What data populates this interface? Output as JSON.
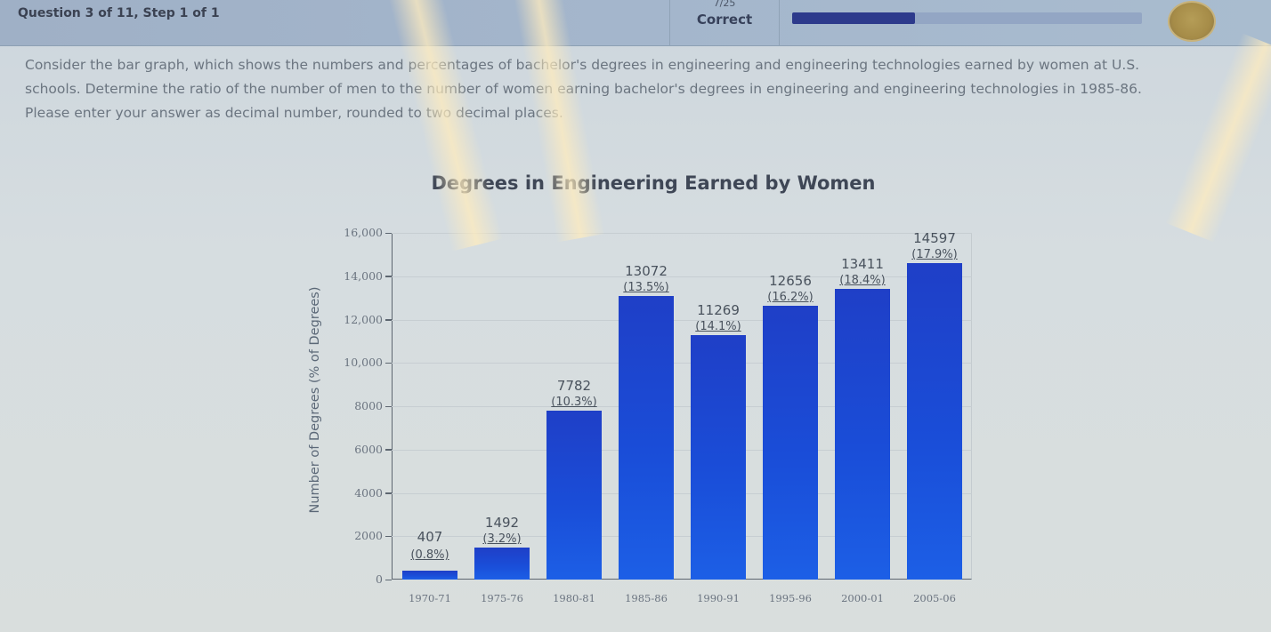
{
  "header": {
    "question_label": "Question 3 of 11, Step 1 of 1",
    "score_fraction": "7/25",
    "score_label": "Correct",
    "progress_percent": 35,
    "progress_color": "#2d3a8c",
    "avatar_icon": "coin-badge-icon"
  },
  "prompt": {
    "line1": "Consider the bar graph, which shows the numbers and percentages of bachelor's degrees in engineering and engineering technologies earned by women at U.S.",
    "line2": "schools. Determine the ratio of the number of men to the number of women earning bachelor's degrees in engineering and engineering technologies in 1985-86.",
    "line3": "Please enter your answer as decimal number, rounded to two decimal places."
  },
  "chart_data": {
    "type": "bar",
    "title": "Degrees in Engineering Earned by Women",
    "xlabel": "",
    "ylabel": "Number of Degrees (% of Degrees)",
    "ylim": [
      0,
      16000
    ],
    "yticks": [
      0,
      2000,
      4000,
      6000,
      8000,
      10000,
      12000,
      14000,
      16000
    ],
    "ytick_labels": [
      "0",
      "2000",
      "4000",
      "6000",
      "8000",
      "10,000",
      "12,000",
      "14,000",
      "16,000"
    ],
    "grid": true,
    "legend": "none",
    "bar_color": "#1a4dd8",
    "categories": [
      "1970-71",
      "1975-76",
      "1980-81",
      "1985-86",
      "1990-91",
      "1995-96",
      "2000-01",
      "2005-06"
    ],
    "values": [
      407,
      1492,
      7782,
      13072,
      11269,
      12656,
      13411,
      14597
    ],
    "value_labels": [
      "407",
      "1492",
      "7782",
      "13072",
      "11269",
      "12656",
      "13411",
      "14597"
    ],
    "percent_labels": [
      "(0.8%)",
      "(3.2%)",
      "(10.3%)",
      "(13.5%)",
      "(14.1%)",
      "(16.2%)",
      "(18.4%)",
      "(17.9%)"
    ]
  }
}
